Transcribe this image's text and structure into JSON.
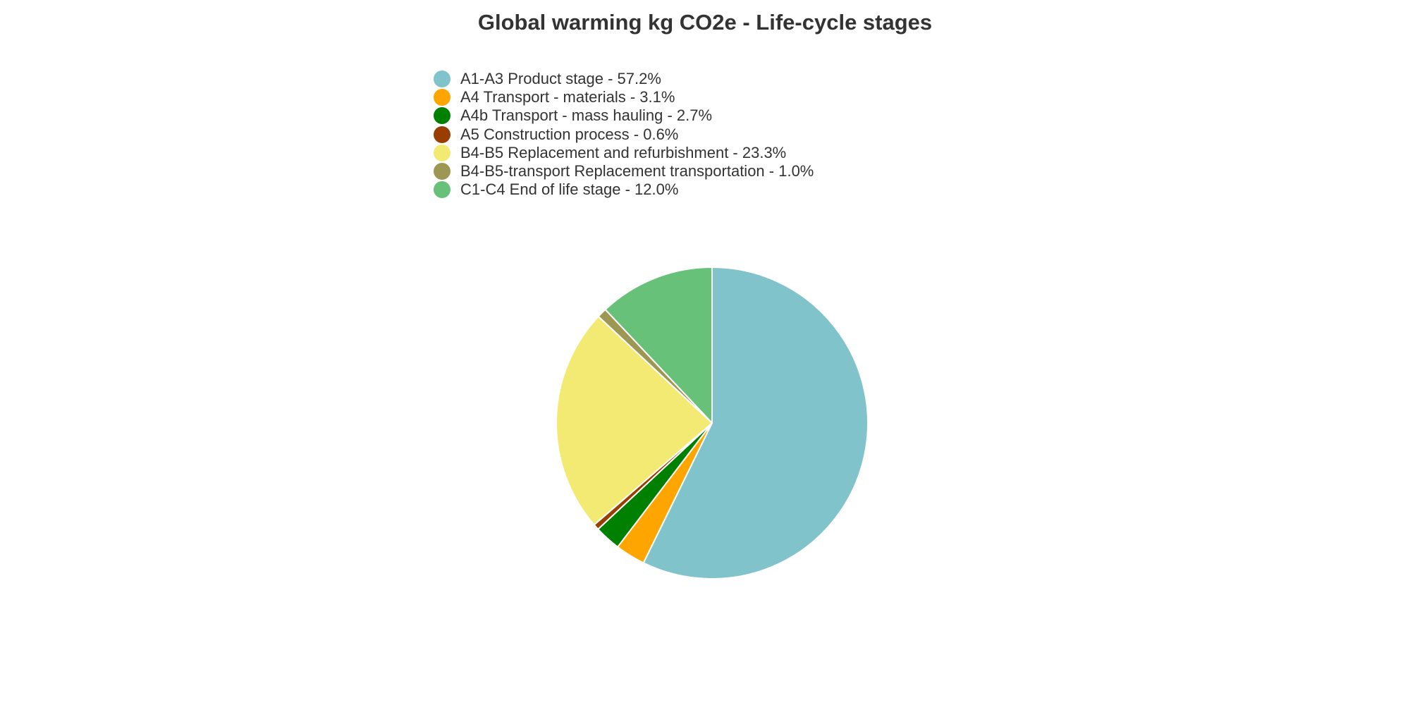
{
  "chart_data": {
    "type": "pie",
    "title": "Global warming kg CO2e - Life-cycle stages",
    "legend_position": "top",
    "slices": [
      {
        "label": "A1-A3 Product stage - 57.2%",
        "value": 57.2,
        "color": "#80c3cb"
      },
      {
        "label": "A4 Transport - materials - 3.1%",
        "value": 3.1,
        "color": "#ffa500"
      },
      {
        "label": "A4b Transport - mass hauling - 2.7%",
        "value": 2.7,
        "color": "#008000"
      },
      {
        "label": "A5 Construction process - 0.6%",
        "value": 0.6,
        "color": "#993d00"
      },
      {
        "label": "B4-B5 Replacement and refurbishment - 23.3%",
        "value": 23.3,
        "color": "#f3ea73"
      },
      {
        "label": "B4-B5-transport Replacement transportation - 1.0%",
        "value": 1.0,
        "color": "#9e9653"
      },
      {
        "label": "C1-C4 End of life stage - 12.0%",
        "value": 12.0,
        "color": "#67c178"
      }
    ]
  }
}
